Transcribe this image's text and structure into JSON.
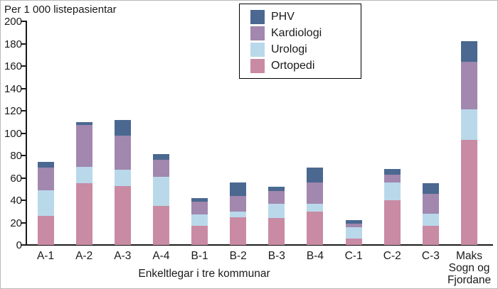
{
  "chart_data": {
    "type": "bar",
    "stacked": true,
    "title": "Per 1 000 listepasientar",
    "xlabel": "Enkeltlegar i tre kommunar",
    "ylabel": "Per 1 000 listepasientar",
    "ylim": [
      0,
      200
    ],
    "ytick_step": 20,
    "grid": false,
    "legend_position": "top-center",
    "categories": [
      "A-1",
      "A-2",
      "A-3",
      "A-4",
      "B-1",
      "B-2",
      "B-3",
      "B-4",
      "C-1",
      "C-2",
      "C-3",
      "Maks Sogn og Fjordane"
    ],
    "x_tick_lines": [
      [
        "A-1"
      ],
      [
        "A-2"
      ],
      [
        "A-3"
      ],
      [
        "A-4"
      ],
      [
        "B-1"
      ],
      [
        "B-2"
      ],
      [
        "B-3"
      ],
      [
        "B-4"
      ],
      [
        "C-1"
      ],
      [
        "C-2"
      ],
      [
        "C-3"
      ],
      [
        "Maks",
        "Sogn og",
        "Fjordane"
      ]
    ],
    "series": [
      {
        "name": "Ortopedi",
        "color": "#c98aa4",
        "values": [
          26,
          55,
          53,
          35,
          17,
          25,
          24,
          30,
          6,
          40,
          17,
          94
        ]
      },
      {
        "name": "Urologi",
        "color": "#b9d9ea",
        "values": [
          23,
          15,
          14,
          26,
          10,
          5,
          13,
          7,
          10,
          16,
          11,
          27
        ]
      },
      {
        "name": "Kardiologi",
        "color": "#a287ae",
        "values": [
          20,
          37,
          31,
          15,
          12,
          14,
          11,
          19,
          3,
          7,
          18,
          43
        ]
      },
      {
        "name": "PHV",
        "color": "#4a6890",
        "values": [
          5,
          3,
          14,
          5,
          3,
          12,
          4,
          13,
          3,
          5,
          9,
          18
        ]
      }
    ],
    "legend_order": [
      "PHV",
      "Kardiologi",
      "Urologi",
      "Ortopedi"
    ],
    "totals": [
      74,
      110,
      112,
      81,
      42,
      56,
      52,
      69,
      22,
      68,
      55,
      182
    ]
  },
  "colors": {
    "axis": "#1a1a1a",
    "background": "#ffffff",
    "phv": "#4a6890",
    "kardiologi": "#a287ae",
    "urologi": "#b9d9ea",
    "ortopedi": "#c98aa4"
  }
}
